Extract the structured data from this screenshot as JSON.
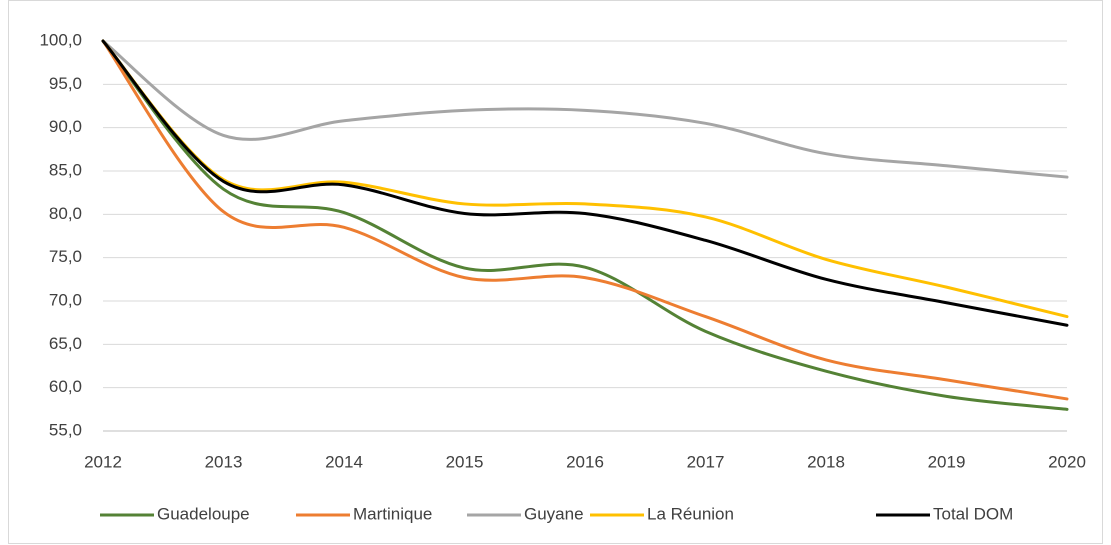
{
  "chart_data": {
    "type": "line",
    "categories": [
      "2012",
      "2013",
      "2014",
      "2015",
      "2016",
      "2017",
      "2018",
      "2019",
      "2020"
    ],
    "series": [
      {
        "name": "Guadeloupe",
        "color": "#548235",
        "values": [
          100,
          82.9,
          80.2,
          73.8,
          73.9,
          66.5,
          61.9,
          59.0,
          57.5
        ]
      },
      {
        "name": "Martinique",
        "color": "#ed7d31",
        "values": [
          100,
          80.3,
          78.5,
          72.7,
          72.7,
          68.2,
          63.2,
          60.9,
          58.7
        ]
      },
      {
        "name": "Guyane",
        "color": "#a5a5a5",
        "values": [
          100,
          89.1,
          90.8,
          92.0,
          92.0,
          90.5,
          87.0,
          85.6,
          84.3
        ]
      },
      {
        "name": "La Réunion",
        "color": "#ffc000",
        "values": [
          100,
          84.0,
          83.7,
          81.2,
          81.2,
          79.7,
          74.8,
          71.6,
          68.2
        ]
      },
      {
        "name": "Total DOM",
        "color": "#000000",
        "values": [
          100,
          83.8,
          83.4,
          80.1,
          80.1,
          77.0,
          72.5,
          69.8,
          67.2
        ]
      }
    ],
    "ylim": [
      55,
      100
    ],
    "yticks": [
      {
        "value": 55,
        "label": "55,0"
      },
      {
        "value": 60,
        "label": "60,0"
      },
      {
        "value": 65,
        "label": "65,0"
      },
      {
        "value": 70,
        "label": "70,0"
      },
      {
        "value": 75,
        "label": "75,0"
      },
      {
        "value": 80,
        "label": "80,0"
      },
      {
        "value": 85,
        "label": "85,0"
      },
      {
        "value": 90,
        "label": "90,0"
      },
      {
        "value": 95,
        "label": "95,0"
      },
      {
        "value": 100,
        "label": "100,0"
      }
    ],
    "grid": true,
    "legend": "bottom"
  }
}
